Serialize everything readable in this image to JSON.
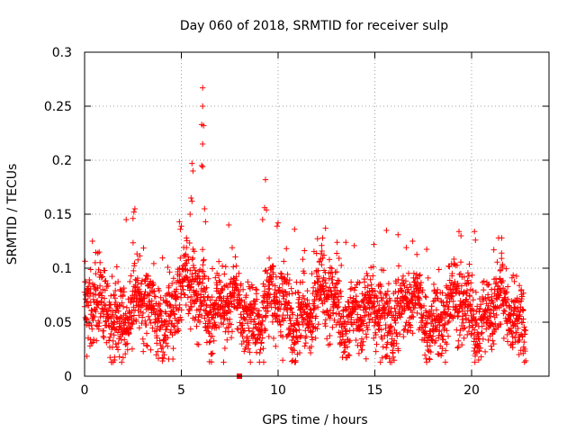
{
  "chart_data": {
    "type": "scatter",
    "title": "Day 060 of 2018, SRMTID for receiver sulp",
    "xlabel": "GPS time / hours",
    "ylabel": "SRMTID / TECUs",
    "xlim": [
      0,
      24
    ],
    "ylim": [
      0,
      0.3
    ],
    "x_ticks": [
      "0",
      "5",
      "10",
      "15",
      "20"
    ],
    "x_tick_values": [
      0,
      5,
      10,
      15,
      20
    ],
    "y_ticks": [
      "0",
      "0.05",
      "0.1",
      "0.15",
      "0.2",
      "0.25",
      "0.3"
    ],
    "y_tick_values": [
      0,
      0.05,
      0.1,
      0.15,
      0.2,
      0.25,
      0.3
    ],
    "grid": true,
    "marker": "plus",
    "color": "#ff0000",
    "x_range_of_points": [
      0,
      22.8
    ],
    "typical_band": [
      0.03,
      0.1
    ],
    "generated_points": 2600,
    "outliers": [
      {
        "x": 6.1,
        "y": 0.267
      },
      {
        "x": 6.1,
        "y": 0.25
      },
      {
        "x": 6.05,
        "y": 0.233
      },
      {
        "x": 6.15,
        "y": 0.232
      },
      {
        "x": 6.1,
        "y": 0.215
      },
      {
        "x": 6.05,
        "y": 0.195
      },
      {
        "x": 6.1,
        "y": 0.194
      },
      {
        "x": 5.55,
        "y": 0.197
      },
      {
        "x": 5.6,
        "y": 0.19
      },
      {
        "x": 5.5,
        "y": 0.165
      },
      {
        "x": 5.55,
        "y": 0.162
      },
      {
        "x": 5.45,
        "y": 0.15
      },
      {
        "x": 6.2,
        "y": 0.155
      },
      {
        "x": 6.25,
        "y": 0.143
      },
      {
        "x": 9.35,
        "y": 0.182
      },
      {
        "x": 9.3,
        "y": 0.156
      },
      {
        "x": 9.4,
        "y": 0.154
      },
      {
        "x": 9.2,
        "y": 0.145
      },
      {
        "x": 2.6,
        "y": 0.155
      },
      {
        "x": 2.55,
        "y": 0.152
      },
      {
        "x": 2.5,
        "y": 0.146
      },
      {
        "x": 2.15,
        "y": 0.145
      },
      {
        "x": 4.9,
        "y": 0.143
      },
      {
        "x": 5.0,
        "y": 0.139
      },
      {
        "x": 4.95,
        "y": 0.136
      },
      {
        "x": 10.0,
        "y": 0.142
      },
      {
        "x": 9.95,
        "y": 0.139
      },
      {
        "x": 7.45,
        "y": 0.14
      },
      {
        "x": 10.85,
        "y": 0.136
      },
      {
        "x": 12.45,
        "y": 0.137
      },
      {
        "x": 12.3,
        "y": 0.128
      },
      {
        "x": 13.05,
        "y": 0.124
      },
      {
        "x": 15.6,
        "y": 0.135
      },
      {
        "x": 16.2,
        "y": 0.131
      },
      {
        "x": 16.95,
        "y": 0.125
      },
      {
        "x": 19.35,
        "y": 0.134
      },
      {
        "x": 19.45,
        "y": 0.13
      },
      {
        "x": 20.15,
        "y": 0.134
      },
      {
        "x": 20.2,
        "y": 0.126
      },
      {
        "x": 21.15,
        "y": 0.117
      },
      {
        "x": 14.95,
        "y": 0.122
      },
      {
        "x": 13.5,
        "y": 0.124
      },
      {
        "x": 1.55,
        "y": 0.015
      },
      {
        "x": 1.8,
        "y": 0.018
      },
      {
        "x": 17.65,
        "y": 0.016
      },
      {
        "x": 14.55,
        "y": 0.016
      },
      {
        "x": 22.45,
        "y": 0.02
      }
    ],
    "flagged_point": {
      "x": 8.0,
      "y": 0.0
    }
  }
}
